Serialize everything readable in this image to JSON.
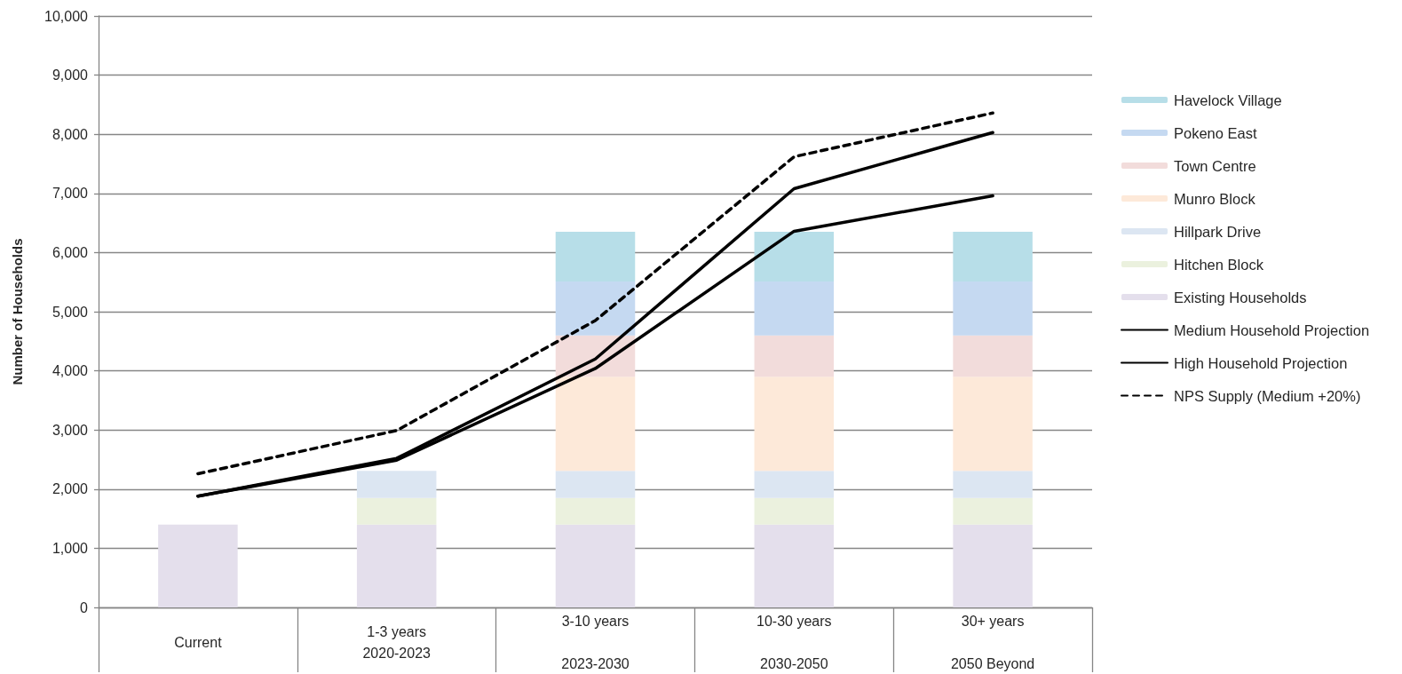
{
  "chart_data": {
    "type": "bar",
    "stacked": true,
    "ylabel": "Number of Households",
    "categories": [
      "Current",
      "1-3 years\n2020-2023",
      "3-10 years\n\n2023-2030",
      "10-30 years\n\n2030-2050",
      "30+ years\n\n2050 Beyond"
    ],
    "series": [
      {
        "name": "Existing Households",
        "color": "#e4dfec",
        "values": [
          1400,
          1400,
          1400,
          1400,
          1400
        ]
      },
      {
        "name": "Hitchen Block",
        "color": "#ebf1de",
        "values": [
          null,
          450,
          450,
          450,
          450
        ]
      },
      {
        "name": "Hillpark Drive",
        "color": "#dce6f2",
        "values": [
          null,
          460,
          460,
          460,
          460
        ]
      },
      {
        "name": "Munro Block",
        "color": "#fde9d9",
        "values": [
          null,
          null,
          1590,
          1590,
          1590
        ]
      },
      {
        "name": "Town Centre",
        "color": "#f2dcdb",
        "values": [
          null,
          null,
          700,
          700,
          700
        ]
      },
      {
        "name": "Pokeno East",
        "color": "#c5d9f1",
        "values": [
          null,
          null,
          910,
          910,
          910
        ]
      },
      {
        "name": "Havelock Village",
        "color": "#b7dee8",
        "values": [
          null,
          null,
          840,
          840,
          840
        ]
      },
      {
        "name": "Medium Household Projection",
        "type": "line",
        "color": "#000000",
        "line_style": "solid",
        "values": [
          1880,
          2490,
          4040,
          6360,
          6960
        ]
      },
      {
        "name": "High Household Projection",
        "type": "line",
        "color": "#000000",
        "line_style": "solid",
        "values": [
          1880,
          2520,
          4200,
          7080,
          8030
        ]
      },
      {
        "name": "NPS Supply (Medium +20%)",
        "type": "line",
        "color": "#000000",
        "line_style": "dashed",
        "values": [
          2260,
          2990,
          4850,
          7620,
          8360
        ]
      }
    ],
    "ylim": [
      0,
      10000
    ],
    "yticks": [
      0,
      {
        "value": 1000,
        "label": "1,000"
      },
      {
        "value": 2000,
        "label": "2,000"
      },
      {
        "value": 3000,
        "label": "3,000"
      },
      {
        "value": 4000,
        "label": "4,000"
      },
      {
        "value": 5000,
        "label": "5,000"
      },
      {
        "value": 6000,
        "label": "6,000"
      },
      {
        "value": 7000,
        "label": "7,000"
      },
      {
        "value": 8000,
        "label": "8,000"
      },
      {
        "value": 9000,
        "label": "9,000"
      },
      {
        "value": 10000,
        "label": "10,000"
      }
    ],
    "grid": "y",
    "legend": "right"
  }
}
